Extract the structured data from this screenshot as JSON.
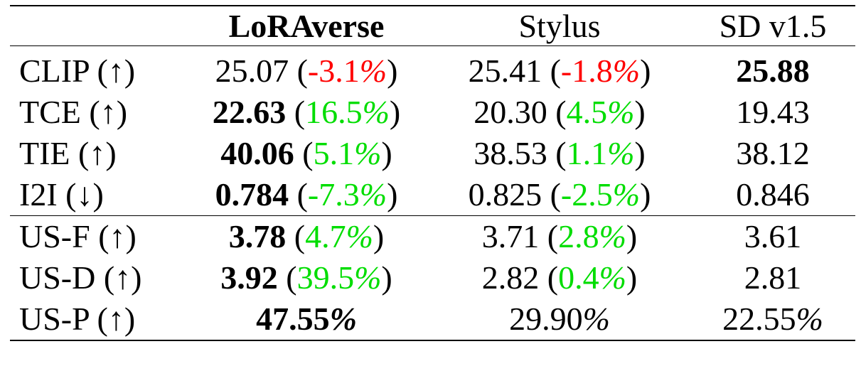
{
  "table": {
    "columns": [
      "",
      "LoRAverse",
      "Stylus",
      "SD v1.5"
    ],
    "bold_columns": [
      1
    ],
    "colors": {
      "negative_worse": "#ff0000",
      "improvement": "#00dd00"
    },
    "rows": [
      {
        "metric": "CLIP (↑)",
        "cells": [
          {
            "value": "25.07",
            "bold": false,
            "delta": "-3.1",
            "delta_color": "red"
          },
          {
            "value": "25.41",
            "bold": false,
            "delta": "-1.8",
            "delta_color": "red"
          },
          {
            "value": "25.88",
            "bold": true,
            "delta": null
          }
        ]
      },
      {
        "metric": "TCE (↑)",
        "cells": [
          {
            "value": "22.63",
            "bold": true,
            "delta": "16.5",
            "delta_color": "green"
          },
          {
            "value": "20.30",
            "bold": false,
            "delta": "4.5",
            "delta_color": "green"
          },
          {
            "value": "19.43",
            "bold": false,
            "delta": null
          }
        ]
      },
      {
        "metric": "TIE (↑)",
        "cells": [
          {
            "value": "40.06",
            "bold": true,
            "delta": "5.1",
            "delta_color": "green"
          },
          {
            "value": "38.53",
            "bold": false,
            "delta": "1.1",
            "delta_color": "green"
          },
          {
            "value": "38.12",
            "bold": false,
            "delta": null
          }
        ]
      },
      {
        "metric": "I2I (↓)",
        "cells": [
          {
            "value": "0.784",
            "bold": true,
            "delta": "-7.3",
            "delta_color": "green"
          },
          {
            "value": "0.825",
            "bold": false,
            "delta": "-2.5",
            "delta_color": "green"
          },
          {
            "value": "0.846",
            "bold": false,
            "delta": null
          }
        ]
      },
      {
        "metric": "US-F (↑)",
        "cells": [
          {
            "value": "3.78",
            "bold": true,
            "delta": "4.7",
            "delta_color": "green"
          },
          {
            "value": "3.71",
            "bold": false,
            "delta": "2.8",
            "delta_color": "green"
          },
          {
            "value": "3.61",
            "bold": false,
            "delta": null
          }
        ]
      },
      {
        "metric": "US-D (↑)",
        "cells": [
          {
            "value": "3.92",
            "bold": true,
            "delta": "39.5",
            "delta_color": "green"
          },
          {
            "value": "2.82",
            "bold": false,
            "delta": "0.4",
            "delta_color": "green"
          },
          {
            "value": "2.81",
            "bold": false,
            "delta": null
          }
        ]
      },
      {
        "metric": "US-P (↑)",
        "cells": [
          {
            "value": "47.55",
            "bold": true,
            "delta": null,
            "percent": true
          },
          {
            "value": "29.90",
            "bold": false,
            "delta": null,
            "percent": true
          },
          {
            "value": "22.55",
            "bold": false,
            "delta": null,
            "percent": true
          }
        ]
      }
    ]
  },
  "chart_data": {
    "type": "table",
    "columns": [
      "",
      "LoRAverse",
      "Stylus",
      "SD v1.5"
    ],
    "rows": [
      [
        "CLIP (↑)",
        "25.07 (-3.1%)",
        "25.41 (-1.8%)",
        "25.88"
      ],
      [
        "TCE (↑)",
        "22.63 (16.5%)",
        "20.30 (4.5%)",
        "19.43"
      ],
      [
        "TIE (↑)",
        "40.06 (5.1%)",
        "38.53 (1.1%)",
        "38.12"
      ],
      [
        "I2I (↓)",
        "0.784 (-7.3%)",
        "0.825 (-2.5%)",
        "0.846"
      ],
      [
        "US-F (↑)",
        "3.78 (4.7%)",
        "3.71 (2.8%)",
        "3.61"
      ],
      [
        "US-D (↑)",
        "3.92 (39.5%)",
        "2.82 (0.4%)",
        "2.81"
      ],
      [
        "US-P (↑)",
        "47.55%",
        "29.90%",
        "22.55%"
      ]
    ]
  }
}
